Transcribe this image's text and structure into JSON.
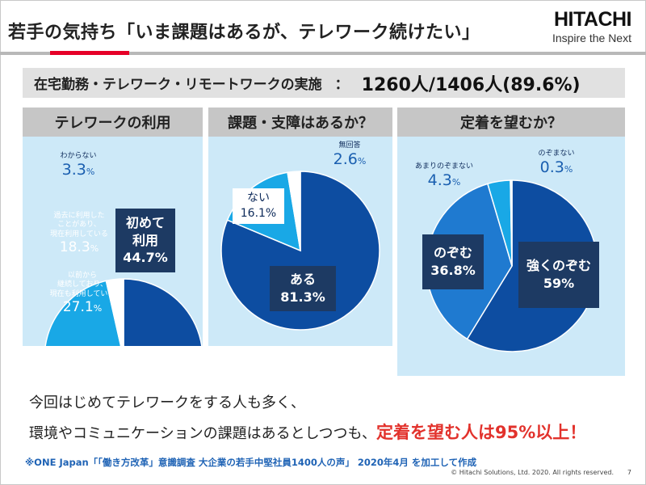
{
  "slide_title": "若手の気持ち「いま課題はあるが、テレワーク続けたい」",
  "logo": {
    "name": "HITACHI",
    "tagline": "Inspire the Next"
  },
  "summary": {
    "label": "在宅勤務・テレワーク・リモートワークの実施",
    "separator": "：",
    "value": "1260人/1406人(89.6%)"
  },
  "colors": {
    "dark_blue": "#0d4da1",
    "mid_blue": "#1f7ad0",
    "light_blue": "#19a8e6",
    "white": "#ffffff",
    "panel_bg": "#cde9f8",
    "navy_box": "#1d3a63",
    "emphasis_red": "#e2322c"
  },
  "chart_data": [
    {
      "type": "pie",
      "title": "テレワークの利用",
      "slices": [
        {
          "label": "初めて利用",
          "value": 44.7,
          "color": "#0d4da1"
        },
        {
          "label": "以前から継続しており、現在も利用している",
          "value": 27.1,
          "color": "#1f7ad0"
        },
        {
          "label": "過去に利用したことがあり、現在利用している",
          "value": 18.3,
          "color": "#19a8e6"
        },
        {
          "label": "わからない",
          "value": 3.3,
          "color": "#ffffff"
        }
      ],
      "labels": {
        "first_a": "初めて",
        "first_b": "利用",
        "first_pct": "44.7%",
        "cont_a": "以前から",
        "cont_b": "継続しており、",
        "cont_c": "現在も利用している",
        "cont_num": "27.1",
        "cont_unit": "%",
        "past_a": "過去に利用した",
        "past_b": "ことがあり、",
        "past_c": "現在利用している",
        "past_num": "18.3",
        "past_unit": "%",
        "unk_cap": "わからない",
        "unk_num": "3.3",
        "unk_unit": "%"
      }
    },
    {
      "type": "pie",
      "title": "課題・支障はあるか？",
      "slices": [
        {
          "label": "ある",
          "value": 81.3,
          "color": "#0d4da1"
        },
        {
          "label": "ない",
          "value": 16.1,
          "color": "#19a8e6"
        },
        {
          "label": "無回答",
          "value": 2.6,
          "color": "#ffffff"
        }
      ],
      "labels": {
        "yes_cap": "ある",
        "yes_pct": "81.3%",
        "no_cap": "ない",
        "no_pct": "16.1%",
        "na_cap": "無回答",
        "na_num": "2.6",
        "na_unit": "%"
      }
    },
    {
      "type": "pie",
      "title": "定着を望むか？",
      "slices": [
        {
          "label": "強くのぞむ",
          "value": 59,
          "color": "#0d4da1"
        },
        {
          "label": "のぞむ",
          "value": 36.8,
          "color": "#1f7ad0"
        },
        {
          "label": "あまりのぞまない",
          "value": 4.3,
          "color": "#19a8e6"
        },
        {
          "label": "のぞまない",
          "value": 0.3,
          "color": "#ffffff"
        }
      ],
      "labels": {
        "strong_cap": "強くのぞむ",
        "strong_pct": "59%",
        "want_cap": "のぞむ",
        "want_pct": "36.8%",
        "less_cap": "あまりのぞまない",
        "less_num": "4.3",
        "less_unit": "%",
        "not_cap": "のぞまない",
        "not_num": "0.3",
        "not_unit": "%"
      }
    }
  ],
  "body": {
    "line1": "今回はじめてテレワークをする人も多く、",
    "line2": "環境やコミュニケーションの課題はあるとしつつも、",
    "line2_emphasis": "定着を望む人は95%以上！"
  },
  "source_note": "※ONE Japan「「働き方改革」意識調査 大企業の若手中堅社員1400人の声」 2020年4月 を加工して作成",
  "copyright": "© Hitachi Solutions, Ltd. 2020. All rights reserved.",
  "page_number": "7"
}
